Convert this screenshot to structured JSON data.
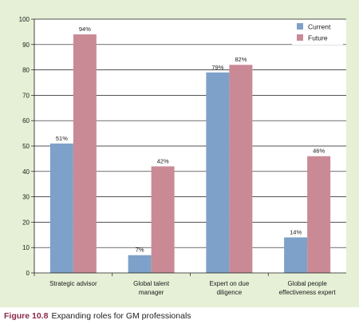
{
  "chart_data": {
    "type": "bar",
    "categories": [
      [
        "Strategic advisor"
      ],
      [
        "Global talent",
        "manager"
      ],
      [
        "Expert on due",
        "diligence"
      ],
      [
        "Global people",
        "effectiveness expert"
      ]
    ],
    "series": [
      {
        "name": "Current",
        "color": "#7ea1c9",
        "values": [
          51,
          7,
          79,
          14
        ],
        "labels": [
          "51%",
          "7%",
          "79%",
          "14%"
        ]
      },
      {
        "name": "Future",
        "color": "#c98a96",
        "values": [
          94,
          42,
          82,
          46
        ],
        "labels": [
          "94%",
          "42%",
          "82%",
          "46%"
        ]
      }
    ],
    "ylim": [
      0,
      100
    ],
    "yticks": [
      0,
      10,
      20,
      30,
      40,
      50,
      60,
      70,
      80,
      90,
      100
    ],
    "grid": true,
    "legend": "top-right"
  },
  "caption": {
    "number": "Figure 10.8",
    "text": "Expanding roles for GM professionals"
  }
}
